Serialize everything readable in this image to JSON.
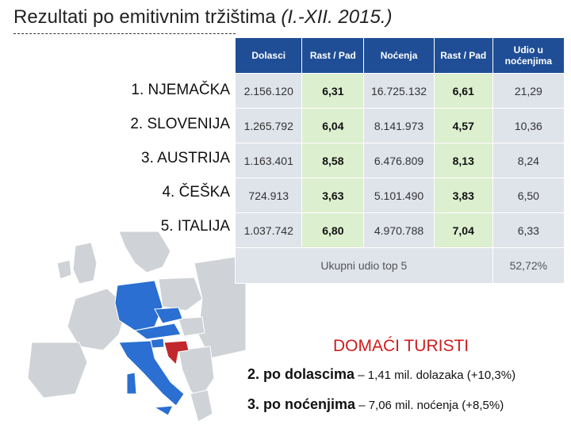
{
  "title": {
    "main": "Rezultati po emitivnim tržištima ",
    "italic": "(I.-XII. 2015.)"
  },
  "table": {
    "headers": [
      "Dolasci",
      "Rast / Pad",
      "Noćenja",
      "Rast / Pad",
      "Udio u noćenjima"
    ],
    "rows": [
      {
        "num": "1.",
        "country": "NJEMAČKA",
        "dolasci": "2.156.120",
        "rast1": "6,31",
        "nocenja": "16.725.132",
        "rast2": "6,61",
        "udio": "21,29"
      },
      {
        "num": "2.",
        "country": "SLOVENIJA",
        "dolasci": "1.265.792",
        "rast1": "6,04",
        "nocenja": "8.141.973",
        "rast2": "4,57",
        "udio": "10,36"
      },
      {
        "num": "3.",
        "country": "AUSTRIJA",
        "dolasci": "1.163.401",
        "rast1": "8,58",
        "nocenja": "6.476.809",
        "rast2": "8,13",
        "udio": "8,24"
      },
      {
        "num": "4.",
        "country": "ČEŠKA",
        "dolasci": "724.913",
        "rast1": "3,63",
        "nocenja": "5.101.490",
        "rast2": "3,83",
        "udio": "6,50"
      },
      {
        "num": "5.",
        "country": "ITALIJA",
        "dolasci": "1.037.742",
        "rast1": "6,80",
        "nocenja": "4.970.788",
        "rast2": "7,04",
        "udio": "6,33"
      }
    ],
    "summary_label": "Ukupni udio top 5",
    "summary_value": "52,72%"
  },
  "domestic": {
    "title": "DOMAĆI TURISTI",
    "line1_bold": "2. po dolascima",
    "line1_rest": " – 1,41 mil. dolazaka (+10,3%)",
    "line2_bold": "3. po noćenjima",
    "line2_rest": " – 7,06 mil. noćenja (+8,5%)"
  },
  "colors": {
    "header": "#1f4e96",
    "highlight_country": "#2a6fd1",
    "croatia": "#c0282d",
    "map_grey": "#cfd2d6"
  }
}
